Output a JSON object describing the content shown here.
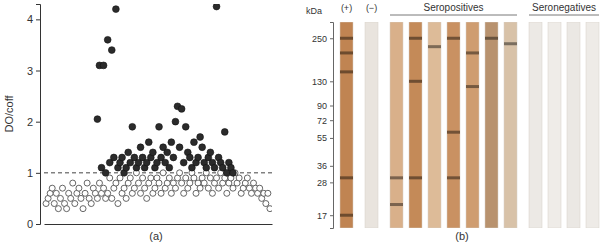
{
  "chart_data": [
    {
      "type": "scatter",
      "title": "(a)",
      "y_label": "DO/coff",
      "xlim": [
        0,
        111
      ],
      "ylim": [
        0,
        4.3
      ],
      "yticks": [
        0,
        1,
        2,
        3,
        4
      ],
      "tick_labels": "y",
      "threshold": 1,
      "series": [
        {
          "color": "#ffffff",
          "marker": "open-circle",
          "x": [
            1,
            2,
            3,
            4,
            5,
            6,
            7,
            8,
            9,
            10,
            11,
            12,
            13,
            14,
            15,
            16,
            17,
            18,
            19,
            20,
            21,
            22,
            23,
            24,
            25,
            26,
            27,
            28,
            29,
            30,
            31,
            32,
            33,
            34,
            35,
            36,
            37,
            38,
            39,
            40,
            41,
            42,
            43,
            44,
            45,
            46,
            47,
            48,
            49,
            50,
            51,
            52,
            53,
            54,
            55,
            56,
            57,
            58,
            59,
            60,
            61,
            62,
            63,
            64,
            65,
            66,
            67,
            68,
            69,
            70,
            71,
            72,
            73,
            74,
            75,
            76,
            77,
            78,
            79,
            80,
            81,
            82,
            83,
            84,
            85,
            86,
            87,
            88,
            89,
            90,
            91,
            92,
            93,
            94,
            95,
            96,
            97,
            98,
            99,
            100,
            101,
            102,
            103,
            104,
            105,
            106,
            107,
            108,
            109,
            110
          ],
          "values": [
            0.4,
            0.5,
            0.6,
            0.7,
            0.4,
            0.6,
            0.3,
            0.5,
            0.7,
            0.4,
            0.3,
            0.6,
            0.5,
            0.8,
            0.4,
            0.6,
            0.7,
            0.5,
            0.3,
            0.6,
            0.8,
            0.5,
            0.4,
            0.7,
            0.6,
            0.5,
            0.8,
            0.6,
            0.7,
            0.5,
            0.6,
            0.9,
            0.5,
            0.7,
            0.8,
            0.4,
            0.9,
            0.6,
            0.7,
            0.5,
            0.8,
            0.9,
            0.6,
            0.7,
            1.0,
            0.8,
            0.6,
            0.9,
            0.7,
            0.5,
            0.8,
            0.9,
            0.6,
            0.7,
            0.9,
            0.8,
            0.6,
            1.0,
            0.7,
            0.8,
            0.9,
            0.6,
            0.8,
            0.7,
            0.9,
            1.0,
            0.8,
            0.6,
            0.9,
            0.7,
            0.8,
            1.0,
            0.9,
            0.6,
            0.8,
            0.7,
            0.9,
            0.8,
            1.0,
            0.7,
            0.9,
            0.6,
            0.8,
            0.9,
            0.7,
            1.0,
            0.8,
            0.9,
            0.6,
            0.8,
            0.9,
            0.7,
            1.0,
            0.8,
            0.9,
            0.6,
            0.7,
            0.8,
            0.9,
            0.7,
            0.6,
            0.8,
            0.7,
            0.6,
            0.7,
            0.5,
            0.6,
            0.4,
            0.6,
            0.3
          ]
        },
        {
          "color": "#2b2b2b",
          "marker": "circle",
          "x": [
            26,
            27,
            28,
            29,
            30,
            31,
            32,
            33,
            34,
            35,
            36,
            37,
            38,
            39,
            40,
            41,
            42,
            43,
            44,
            45,
            46,
            47,
            48,
            49,
            50,
            51,
            52,
            53,
            54,
            55,
            56,
            57,
            58,
            59,
            60,
            61,
            62,
            63,
            64,
            65,
            66,
            67,
            68,
            69,
            70,
            71,
            72,
            73,
            74,
            75,
            76,
            77,
            78,
            79,
            80,
            81,
            82,
            83,
            84,
            85,
            86,
            87,
            88,
            89,
            90,
            91,
            92
          ],
          "values": [
            2.05,
            3.1,
            1.1,
            3.1,
            1.0,
            3.6,
            1.2,
            3.4,
            1.3,
            4.2,
            1.1,
            1.2,
            1.3,
            1.0,
            1.1,
            1.4,
            1.2,
            1.9,
            1.3,
            1.1,
            1.2,
            1.5,
            1.3,
            1.1,
            1.2,
            1.6,
            1.3,
            1.4,
            1.1,
            1.2,
            1.9,
            1.3,
            1.5,
            1.2,
            1.4,
            1.1,
            1.6,
            1.3,
            2.0,
            2.3,
            1.5,
            2.25,
            1.2,
            1.9,
            1.4,
            1.3,
            1.1,
            1.6,
            1.2,
            1.3,
            1.7,
            1.5,
            1.2,
            1.1,
            1.3,
            1.4,
            1.2,
            1.1,
            4.25,
            1.3,
            1.2,
            1.1,
            1.8,
            1.0,
            1.2,
            1.1,
            1.0
          ]
        }
      ]
    },
    {
      "type": "blot",
      "title": "(b)",
      "y_label": "kDa",
      "log": "y",
      "ylim": [
        14,
        320
      ],
      "yticks": [
        250,
        130,
        90,
        72,
        55,
        36,
        28,
        17
      ],
      "lane_groups": [
        {
          "label": "(+)",
          "lanes": [
            {
              "color": "#c08452",
              "bands": [
                250,
                200,
                150,
                30,
                17
              ]
            }
          ]
        },
        {
          "label": "(−)",
          "lanes": [
            {
              "color": "#e9e4de",
              "bands": []
            }
          ]
        },
        {
          "label": "Seropositives",
          "lanes": [
            {
              "color": "#d9b08a",
              "bands": [
                30,
                20
              ]
            },
            {
              "color": "#c48a58",
              "bands": [
                250,
                130,
                30
              ]
            },
            {
              "color": "#ddbb98",
              "bands": [
                220
              ]
            },
            {
              "color": "#c99162",
              "bands": [
                250,
                60,
                30
              ]
            },
            {
              "color": "#cf9d70",
              "bands": [
                200,
                120
              ]
            },
            {
              "color": "#b8926e",
              "bands": [
                250
              ]
            },
            {
              "color": "#d8c2a8",
              "bands": [
                230
              ]
            }
          ]
        },
        {
          "label": "Seronegatives",
          "lanes": [
            {
              "color": "#ece9e5",
              "bands": []
            },
            {
              "color": "#efece8",
              "bands": []
            },
            {
              "color": "#ebe8e4",
              "bands": []
            },
            {
              "color": "#eeebe7",
              "bands": []
            }
          ]
        }
      ]
    }
  ]
}
